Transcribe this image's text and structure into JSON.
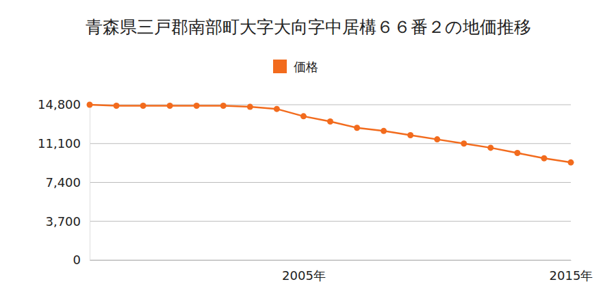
{
  "chart_data": {
    "type": "line",
    "title": "青森県三戸郡南部町大字大向字中居構６６番２の地価推移",
    "x": [
      1997,
      1998,
      1999,
      2000,
      2001,
      2002,
      2003,
      2004,
      2005,
      2006,
      2007,
      2008,
      2009,
      2010,
      2011,
      2012,
      2013,
      2014,
      2015
    ],
    "series": [
      {
        "name": "価格",
        "color": "#f26b1d",
        "marker": "circle",
        "values": [
          14800,
          14700,
          14700,
          14700,
          14700,
          14700,
          14600,
          14400,
          13700,
          13200,
          12600,
          12300,
          11900,
          11500,
          11100,
          10700,
          10200,
          9700,
          9300
        ]
      }
    ],
    "xlim": [
      1997,
      2015
    ],
    "xticks": [
      {
        "value": 2005,
        "label": "2005年"
      },
      {
        "value": 2015,
        "label": "2015年"
      }
    ],
    "ylim": [
      0,
      14800
    ],
    "yticks": [
      0,
      {
        "value": 3700,
        "label": "3,700"
      },
      {
        "value": 7400,
        "label": "7,400"
      },
      {
        "value": 11100,
        "label": "11,100"
      },
      {
        "value": 14800,
        "label": "14,800"
      }
    ],
    "grid": true,
    "legend": "top"
  }
}
